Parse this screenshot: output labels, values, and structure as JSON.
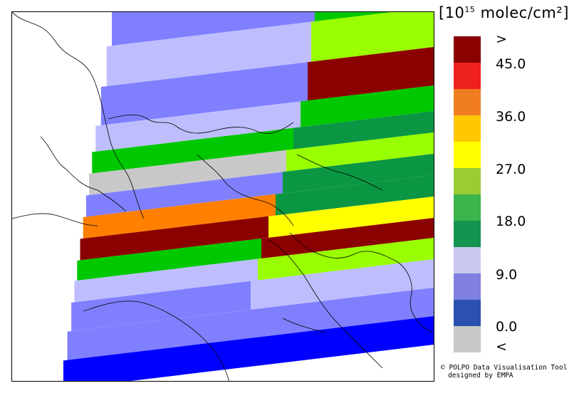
{
  "legend": {
    "unit_prefix": "[10",
    "unit_exp": "15",
    "unit_suffix": " molec/cm²]",
    "bins": [
      {
        "label": ">",
        "color": "#8b0000"
      },
      {
        "label": "",
        "color": "#ee2020"
      },
      {
        "label": "45.0",
        "color": "#f07d1f"
      },
      {
        "label": "",
        "color": "#ffc800"
      },
      {
        "label": "36.0",
        "color": "#ffff00"
      },
      {
        "label": "",
        "color": "#9acd32"
      },
      {
        "label": "27.0",
        "color": "#3cb44b"
      },
      {
        "label": "",
        "color": "#139450"
      },
      {
        "label": "18.0",
        "color": "#c8c8f0"
      },
      {
        "label": "",
        "color": "#8080e0"
      },
      {
        "label": "9.0",
        "color": "#2a50b0"
      },
      {
        "label": "",
        "color": "#c8c8c8"
      },
      {
        "label": "0.0",
        "color": ""
      },
      {
        "label": "<",
        "color": ""
      }
    ]
  },
  "credit": {
    "line1": "© POLPO Data Visualisation Tool",
    "line2": "designed by EMPA"
  },
  "map": {
    "palette": {
      "dark_red": "#8b0000",
      "orange": "#ff8000",
      "yellow": "#ffff00",
      "lime": "#99ff00",
      "green": "#00c800",
      "dark_green": "#0a9642",
      "light_lavender": "#bebeff",
      "periwinkle": "#8080ff",
      "blue": "#0000ff",
      "grey": "#c8c8c8"
    }
  }
}
